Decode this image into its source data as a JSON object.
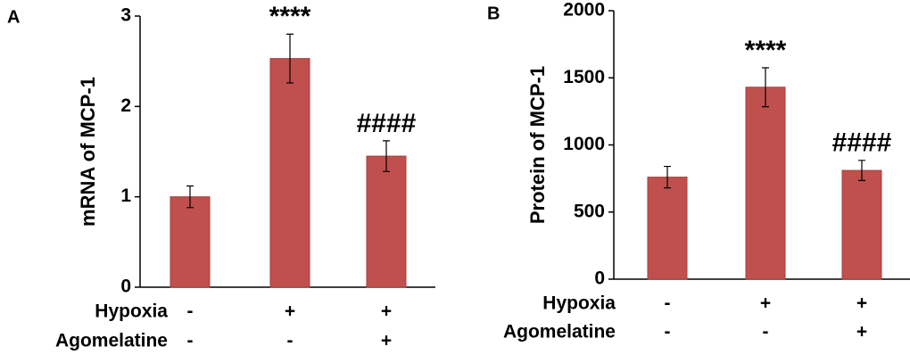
{
  "chart_data": [
    {
      "type": "bar",
      "panel_label": "A",
      "ylabel": "mRNA of MCP-1",
      "categories": [
        null,
        null,
        null
      ],
      "values": [
        1.0,
        2.53,
        1.45
      ],
      "errors": [
        0.12,
        0.27,
        0.17
      ],
      "annotations": [
        null,
        "****",
        "####"
      ],
      "conditions": [
        {
          "name": "Hypoxia",
          "values": [
            "-",
            "+",
            "+"
          ]
        },
        {
          "name": "Agomelatine",
          "values": [
            "-",
            "-",
            "+"
          ]
        }
      ],
      "color": "#c0504d",
      "ylim": [
        0,
        3
      ],
      "yticks": [
        0,
        1,
        2,
        3
      ]
    },
    {
      "type": "bar",
      "panel_label": "B",
      "ylabel": "Protein of MCP-1",
      "categories": [
        null,
        null,
        null
      ],
      "values": [
        760,
        1430,
        810
      ],
      "errors": [
        80,
        145,
        75
      ],
      "annotations": [
        null,
        "****",
        "####"
      ],
      "conditions": [
        {
          "name": "Hypoxia",
          "values": [
            "-",
            "+",
            "+"
          ]
        },
        {
          "name": "Agomelatine",
          "values": [
            "-",
            "-",
            "+"
          ]
        }
      ],
      "color": "#c0504d",
      "ylim": [
        0,
        2000
      ],
      "yticks": [
        0,
        500,
        1000,
        1500,
        2000
      ]
    }
  ]
}
